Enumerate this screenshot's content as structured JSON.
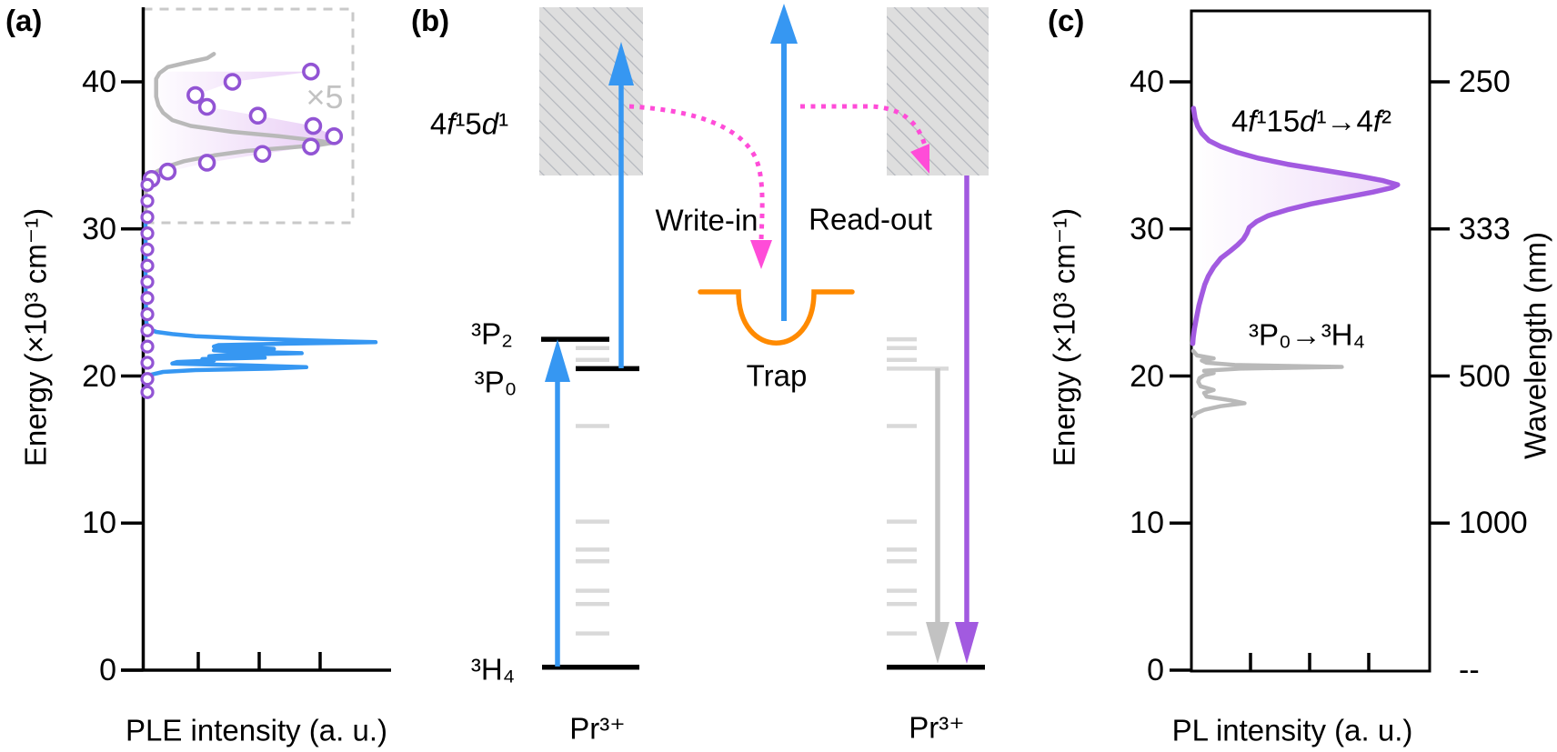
{
  "figure": {
    "panel_a_letter": "(a)",
    "panel_b_letter": "(b)",
    "panel_c_letter": "(c)"
  },
  "colors": {
    "blue": "#3697f2",
    "magenta": "#ff4cd8",
    "orange": "#ff8a00",
    "purple": "#a25ae0",
    "circle_purple": "#9254d4",
    "gray_curve": "#b9b9b9",
    "gray_arrow": "#c2c2c2",
    "level_light": "#d9d9d9",
    "hatch_bg": "#dedede",
    "hatch_line": "#b3b6bd",
    "dash_box": "#c9c9c9",
    "fill_purple": "#cf94eb"
  },
  "chart_data": [
    {
      "type": "line",
      "id": "ple",
      "xlabel": "PLE intensity (a. u.)",
      "ylabel": "Energy (×10³ cm⁻¹)",
      "orientation": "intensity-horizontal, energy-vertical",
      "ylim": [
        0,
        45
      ],
      "y_ticks": [
        {
          "label": "40",
          "E": 40
        },
        {
          "label": "30",
          "E": 30
        },
        {
          "label": "20",
          "E": 20
        },
        {
          "label": "10",
          "E": 10
        },
        {
          "label": "0",
          "E": 0
        }
      ],
      "inset": {
        "E_range": [
          30.5,
          45
        ],
        "magnification_label": "×5"
      },
      "series": [
        {
          "name": "4f-4f excitation (blue)",
          "points": [
            [
              30.5,
              0.004
            ],
            [
              28.0,
              0.004
            ],
            [
              26.0,
              0.004
            ],
            [
              24.5,
              0.006
            ],
            [
              23.6,
              0.008
            ],
            [
              23.2,
              0.02
            ],
            [
              23.0,
              0.05
            ],
            [
              22.85,
              0.12
            ],
            [
              22.7,
              0.22
            ],
            [
              22.55,
              0.45
            ],
            [
              22.42,
              0.72
            ],
            [
              22.3,
              1.0
            ],
            [
              22.2,
              0.62
            ],
            [
              22.1,
              0.32
            ],
            [
              22.0,
              0.3
            ],
            [
              21.93,
              0.45
            ],
            [
              21.85,
              0.56
            ],
            [
              21.75,
              0.3
            ],
            [
              21.65,
              0.42
            ],
            [
              21.55,
              0.68
            ],
            [
              21.45,
              0.38
            ],
            [
              21.35,
              0.28
            ],
            [
              21.25,
              0.52
            ],
            [
              21.15,
              0.25
            ],
            [
              21.05,
              0.3
            ],
            [
              20.95,
              0.14
            ],
            [
              20.85,
              0.12
            ],
            [
              20.72,
              0.45
            ],
            [
              20.6,
              0.7
            ],
            [
              20.5,
              0.55
            ],
            [
              20.4,
              0.22
            ],
            [
              20.28,
              0.08
            ],
            [
              20.1,
              0.03
            ],
            [
              19.8,
              0.015
            ],
            [
              19.4,
              0.008
            ],
            [
              18.9,
              0.004
            ],
            [
              18.6,
              0.003
            ]
          ]
        },
        {
          "name": "4f-5d excitation x5 (gray)",
          "points": [
            [
              41.9,
              0.3
            ],
            [
              41.6,
              0.27
            ],
            [
              41.3,
              0.18
            ],
            [
              41.0,
              0.1
            ],
            [
              40.6,
              0.065
            ],
            [
              40.2,
              0.05
            ],
            [
              39.6,
              0.05
            ],
            [
              39.0,
              0.05
            ],
            [
              38.4,
              0.06
            ],
            [
              37.9,
              0.08
            ],
            [
              37.4,
              0.12
            ],
            [
              37.0,
              0.2
            ],
            [
              36.6,
              0.38
            ],
            [
              36.3,
              0.58
            ],
            [
              36.0,
              0.75
            ],
            [
              35.85,
              0.81
            ],
            [
              35.7,
              0.75
            ],
            [
              35.5,
              0.6
            ],
            [
              35.3,
              0.44
            ],
            [
              35.0,
              0.3
            ],
            [
              34.6,
              0.17
            ],
            [
              34.2,
              0.09
            ],
            [
              33.8,
              0.04
            ],
            [
              33.4,
              0.015
            ],
            [
              33.1,
              0.008
            ],
            [
              32.5,
              0.005
            ],
            [
              31.5,
              0.004
            ],
            [
              30.7,
              0.004
            ]
          ]
        },
        {
          "name": "circle markers (purple, in inset)",
          "points": [
            [
              40.7,
              0.72
            ],
            [
              40.0,
              0.38
            ],
            [
              39.1,
              0.22
            ],
            [
              38.3,
              0.27
            ],
            [
              37.7,
              0.49
            ],
            [
              37.0,
              0.73
            ],
            [
              36.3,
              0.82
            ],
            [
              35.6,
              0.72
            ],
            [
              35.1,
              0.51
            ],
            [
              34.5,
              0.27
            ],
            [
              33.9,
              0.1
            ],
            [
              33.4,
              0.03
            ]
          ]
        },
        {
          "name": "circle markers (purple, along axis)",
          "intensity": 0.012,
          "E_list": [
            33.0,
            31.9,
            30.8,
            29.7,
            28.6,
            27.5,
            26.4,
            25.3,
            24.2,
            23.1,
            22.0,
            20.9,
            19.8,
            18.9
          ]
        }
      ]
    },
    {
      "type": "line",
      "id": "pl",
      "xlabel": "PL intensity (a. u.)",
      "ylabel": "Energy (×10³ cm⁻¹)",
      "right_axis_label": "Wavelength (nm)",
      "ylim": [
        0,
        45
      ],
      "y_ticks": [
        {
          "label": "40",
          "E": 40
        },
        {
          "label": "30",
          "E": 30
        },
        {
          "label": "20",
          "E": 20
        },
        {
          "label": "10",
          "E": 10
        },
        {
          "label": "0",
          "E": 0
        }
      ],
      "right_ticks": [
        {
          "label": "250",
          "E": 40
        },
        {
          "label": "333",
          "E": 30
        },
        {
          "label": "500",
          "E": 20
        },
        {
          "label": "1000",
          "E": 10
        }
      ],
      "right_infinity_label": "--",
      "annotations": [
        {
          "id": "d_to_f",
          "text": "4*f*¹15*d*¹→4*f*²"
        },
        {
          "id": "p0_h4",
          "text": "³P₀→³H₄"
        }
      ],
      "series": [
        {
          "name": "5d-4f emission (purple)",
          "points": [
            [
              38.2,
              0.005
            ],
            [
              37.5,
              0.012
            ],
            [
              37.0,
              0.022
            ],
            [
              36.5,
              0.04
            ],
            [
              36.0,
              0.07
            ],
            [
              35.6,
              0.12
            ],
            [
              35.2,
              0.19
            ],
            [
              34.8,
              0.28
            ],
            [
              34.4,
              0.4
            ],
            [
              34.0,
              0.55
            ],
            [
              33.6,
              0.7
            ],
            [
              33.3,
              0.8
            ],
            [
              33.0,
              0.865
            ],
            [
              32.8,
              0.84
            ],
            [
              32.5,
              0.76
            ],
            [
              32.1,
              0.63
            ],
            [
              31.7,
              0.5
            ],
            [
              31.3,
              0.4
            ],
            [
              30.9,
              0.32
            ],
            [
              30.5,
              0.27
            ],
            [
              30.1,
              0.24
            ],
            [
              29.7,
              0.23
            ],
            [
              29.3,
              0.215
            ],
            [
              28.9,
              0.19
            ],
            [
              28.5,
              0.16
            ],
            [
              28.0,
              0.12
            ],
            [
              27.4,
              0.09
            ],
            [
              26.8,
              0.068
            ],
            [
              26.2,
              0.052
            ],
            [
              25.5,
              0.04
            ],
            [
              24.8,
              0.028
            ],
            [
              24.0,
              0.018
            ],
            [
              23.2,
              0.009
            ],
            [
              22.6,
              0.004
            ],
            [
              22.2,
              0.002
            ]
          ]
        },
        {
          "name": "3P0-3H4 emission (gray)",
          "points": [
            [
              21.7,
              0.004
            ],
            [
              21.4,
              0.02
            ],
            [
              21.2,
              0.09
            ],
            [
              21.05,
              0.04
            ],
            [
              20.9,
              0.06
            ],
            [
              20.75,
              0.18
            ],
            [
              20.62,
              0.63
            ],
            [
              20.5,
              0.2
            ],
            [
              20.35,
              0.05
            ],
            [
              20.2,
              0.09
            ],
            [
              20.05,
              0.05
            ],
            [
              19.85,
              0.03
            ],
            [
              19.6,
              0.025
            ],
            [
              19.3,
              0.035
            ],
            [
              19.05,
              0.09
            ],
            [
              18.85,
              0.05
            ],
            [
              18.6,
              0.06
            ],
            [
              18.35,
              0.16
            ],
            [
              18.15,
              0.22
            ],
            [
              17.95,
              0.12
            ],
            [
              17.7,
              0.05
            ],
            [
              17.45,
              0.015
            ],
            [
              17.25,
              0.005
            ]
          ]
        }
      ]
    }
  ],
  "diagram": {
    "band_label": "4*f*¹5*d*¹",
    "trap_label": "Trap",
    "write_in_label": "Write-in",
    "read_out_label": "Read-out",
    "ion_label_left": "Pr³⁺",
    "ion_label_right": "Pr³⁺",
    "level_labels": {
      "p2": "³P₂",
      "p0": "³P₀",
      "h4": "³H₄"
    },
    "left_levels": [
      {
        "E": 22.5,
        "emph": "dark"
      },
      {
        "E": 21.9,
        "emph": "light"
      },
      {
        "E": 21.1,
        "emph": "light"
      },
      {
        "E": 20.5,
        "emph": "dark"
      },
      {
        "E": 16.6,
        "emph": "light"
      },
      {
        "E": 10.1,
        "emph": "light"
      },
      {
        "E": 8.2,
        "emph": "light"
      },
      {
        "E": 7.4,
        "emph": "light"
      },
      {
        "E": 5.4,
        "emph": "light"
      },
      {
        "E": 4.5,
        "emph": "light"
      },
      {
        "E": 2.5,
        "emph": "light"
      },
      {
        "E": 0.2,
        "emph": "dark"
      }
    ],
    "right_levels": [
      {
        "E": 22.5,
        "emph": "light"
      },
      {
        "E": 21.9,
        "emph": "light"
      },
      {
        "E": 21.1,
        "emph": "light"
      },
      {
        "E": 20.5,
        "emph": "light"
      },
      {
        "E": 16.6,
        "emph": "light"
      },
      {
        "E": 10.1,
        "emph": "light"
      },
      {
        "E": 8.2,
        "emph": "light"
      },
      {
        "E": 7.4,
        "emph": "light"
      },
      {
        "E": 5.4,
        "emph": "light"
      },
      {
        "E": 4.5,
        "emph": "light"
      },
      {
        "E": 2.5,
        "emph": "light"
      },
      {
        "E": 0.2,
        "emph": "dark"
      }
    ]
  }
}
